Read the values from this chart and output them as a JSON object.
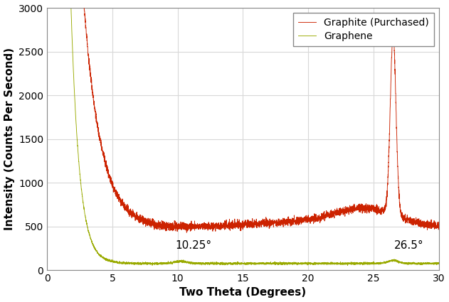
{
  "xlabel": "Two Theta (Degrees)",
  "ylabel": "Intensity (Counts Per Second)",
  "xlim": [
    0,
    30
  ],
  "ylim": [
    0,
    3000
  ],
  "yticks": [
    0,
    500,
    1000,
    1500,
    2000,
    2500,
    3000
  ],
  "xticks": [
    0,
    5,
    10,
    15,
    20,
    25,
    30
  ],
  "graphite_color": "#cc2200",
  "graphene_color": "#99aa00",
  "background_color": "#ffffff",
  "legend_labels": [
    "Graphite (Purchased)",
    "Graphene"
  ],
  "ann_graphite_peak_label": "26.5°",
  "ann_graphite_peak_x": 27.4,
  "ann_graphite_peak_y": 2680,
  "ann_graphene_peak_label": "26.5°",
  "ann_graphene_peak_x": 26.6,
  "ann_graphene_peak_y": 280,
  "ann_10_label": "10.25°",
  "ann_10_x": 9.8,
  "ann_10_y": 280,
  "grid_color": "#d8d8d8",
  "font_size_axis": 11,
  "font_size_tick": 10,
  "font_size_annot": 11,
  "font_size_legend": 10
}
